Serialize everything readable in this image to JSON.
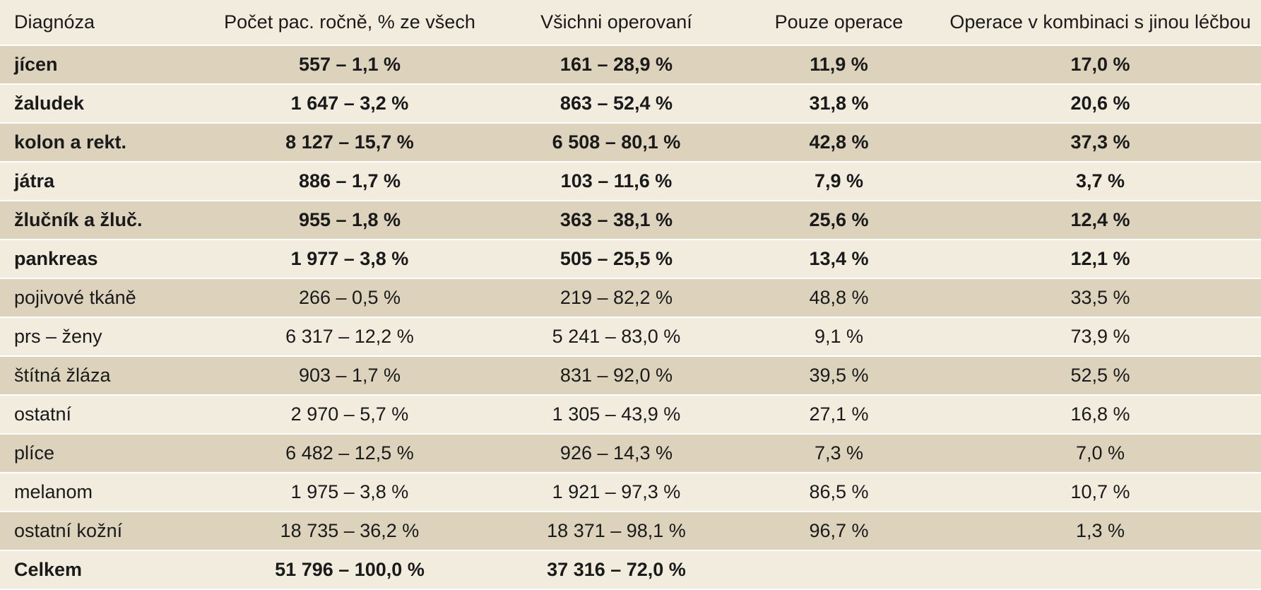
{
  "header": {
    "diagnosis": "Diagnóza",
    "count": "Počet pac. ročně, % ze všech",
    "all_operated": "Všichni operovaní",
    "surgery_only": "Pouze operace",
    "surgery_combined": "Operace v kombinaci s jinou léčbou"
  },
  "rows": [
    {
      "diagnosis": "jícen",
      "count": "557 – 1,1 %",
      "all_operated": "161 – 28,9 %",
      "surgery_only": "11,9 %",
      "surgery_combined": "17,0 %"
    },
    {
      "diagnosis": "žaludek",
      "count": "1 647 – 3,2 %",
      "all_operated": "863 – 52,4 %",
      "surgery_only": "31,8 %",
      "surgery_combined": "20,6 %"
    },
    {
      "diagnosis": "kolon a rekt.",
      "count": "8 127 – 15,7 %",
      "all_operated": "6 508 – 80,1 %",
      "surgery_only": "42,8 %",
      "surgery_combined": "37,3 %"
    },
    {
      "diagnosis": "játra",
      "count": "886 – 1,7 %",
      "all_operated": "103 – 11,6 %",
      "surgery_only": "7,9 %",
      "surgery_combined": "3,7 %"
    },
    {
      "diagnosis": "žlučník a žluč.",
      "count": "955 – 1,8 %",
      "all_operated": "363 – 38,1 %",
      "surgery_only": "25,6 %",
      "surgery_combined": "12,4 %"
    },
    {
      "diagnosis": "pankreas",
      "count": "1 977 – 3,8 %",
      "all_operated": "505 – 25,5 %",
      "surgery_only": "13,4 %",
      "surgery_combined": "12,1 %"
    },
    {
      "diagnosis": "pojivové tkáně",
      "count": "266 – 0,5 %",
      "all_operated": "219 – 82,2 %",
      "surgery_only": "48,8 %",
      "surgery_combined": "33,5 %"
    },
    {
      "diagnosis": "prs – ženy",
      "count": "6 317 – 12,2 %",
      "all_operated": "5 241 – 83,0 %",
      "surgery_only": "9,1 %",
      "surgery_combined": "73,9 %"
    },
    {
      "diagnosis": "štítná žláza",
      "count": "903 – 1,7 %",
      "all_operated": "831 – 92,0 %",
      "surgery_only": "39,5 %",
      "surgery_combined": "52,5 %"
    },
    {
      "diagnosis": "ostatní",
      "count": "2 970 – 5,7 %",
      "all_operated": "1 305 – 43,9 %",
      "surgery_only": "27,1 %",
      "surgery_combined": "16,8 %"
    },
    {
      "diagnosis": "plíce",
      "count": "6 482 – 12,5 %",
      "all_operated": "926 – 14,3 %",
      "surgery_only": "7,3 %",
      "surgery_combined": "7,0 %"
    },
    {
      "diagnosis": "melanom",
      "count": "1 975 – 3,8 %",
      "all_operated": "1 921 – 97,3 %",
      "surgery_only": "86,5 %",
      "surgery_combined": "10,7 %"
    },
    {
      "diagnosis": "ostatní kožní",
      "count": "18 735 – 36,2 %",
      "all_operated": "18 371 – 98,1 %",
      "surgery_only": "96,7 %",
      "surgery_combined": "1,3 %"
    },
    {
      "diagnosis": "Celkem",
      "count": "51 796 – 100,0 %",
      "all_operated": "37 316 – 72,0 %",
      "surgery_only": "",
      "surgery_combined": ""
    }
  ]
}
